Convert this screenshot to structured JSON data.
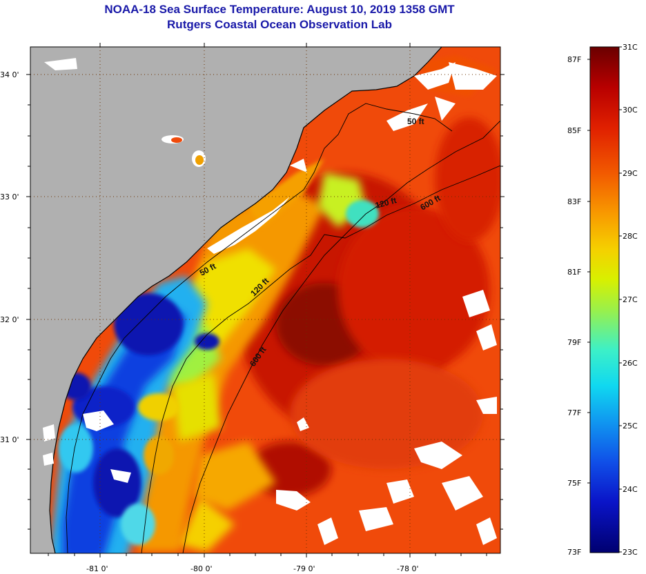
{
  "titles": {
    "line1": "NOAA-18 Sea Surface Temperature:  August 10, 2019 1358 GMT",
    "line2": "Rutgers Coastal Ocean Observation Lab"
  },
  "axes": {
    "lat_ticks": [
      "34 0'",
      "33 0'",
      "32 0'",
      "31 0'"
    ],
    "lon_ticks": [
      "-81 0'",
      "-80 0'",
      "-79 0'",
      "-78 0'"
    ]
  },
  "contours": [
    "50 ft",
    "120 ft",
    "600 ft",
    "50 ft",
    "120 ft",
    "600 ft"
  ],
  "colorbar": {
    "fahrenheit": [
      "87F",
      "85F",
      "83F",
      "81F",
      "79F",
      "77F",
      "75F",
      "73F"
    ],
    "celsius": [
      "31C",
      "30C",
      "29C",
      "28C",
      "27C",
      "26C",
      "25C",
      "24C",
      "23C"
    ],
    "colors": [
      "#7a0000",
      "#b80000",
      "#e02000",
      "#f25a00",
      "#f89a00",
      "#f5d000",
      "#d8f000",
      "#9af04a",
      "#3cf0c8",
      "#10d8f0",
      "#1098f0",
      "#1050e8",
      "#0a14c8",
      "#000080"
    ]
  },
  "colors": {
    "land": "#b0b0b0",
    "cloud": "#ffffff",
    "title": "#1818a8"
  }
}
